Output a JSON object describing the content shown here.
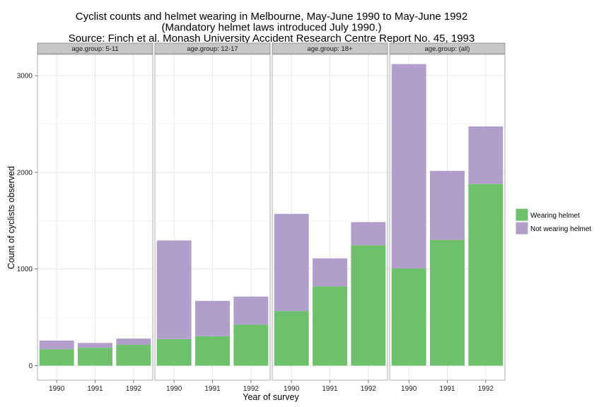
{
  "chart_data": {
    "type": "bar",
    "stacked": true,
    "faceted": true,
    "title": [
      "Cyclist counts and helmet wearing in Melbourne, May-June 1990 to May-June 1992",
      "(Mandatory helmet laws introduced July 1990.)",
      "Source: Finch et al. Monash University Accident Research Centre Report No. 45, 1993"
    ],
    "xlabel": "Year of survey",
    "ylabel": "Count of cyclists observed",
    "ylim": [
      -150,
      3220
    ],
    "yticks": [
      0,
      1000,
      2000,
      3000
    ],
    "categories": [
      "1990",
      "1991",
      "1992"
    ],
    "grid": true,
    "legend": {
      "placement": "right",
      "entries": [
        {
          "label": "Wearing helmet",
          "color": "#6cc16a"
        },
        {
          "label": "Not wearing helmet",
          "color": "#b19ecb"
        }
      ]
    },
    "facets": [
      {
        "label": "age.group: 5-11",
        "series": [
          {
            "name": "Wearing helmet",
            "values": [
              170,
              185,
              215
            ]
          },
          {
            "name": "Not wearing helmet",
            "values": [
              90,
              50,
              65
            ]
          }
        ]
      },
      {
        "label": "age.group: 12-17",
        "series": [
          {
            "name": "Wearing helmet",
            "values": [
              275,
              305,
              425
            ]
          },
          {
            "name": "Not wearing helmet",
            "values": [
              1020,
              365,
              290
            ]
          }
        ]
      },
      {
        "label": "age.group: 18+",
        "series": [
          {
            "name": "Wearing helmet",
            "values": [
              565,
              820,
              1245
            ]
          },
          {
            "name": "Not wearing helmet",
            "values": [
              1005,
              290,
              240
            ]
          }
        ]
      },
      {
        "label": "age.group: (all)",
        "series": [
          {
            "name": "Wearing helmet",
            "values": [
              1005,
              1300,
              1880
            ]
          },
          {
            "name": "Not wearing helmet",
            "values": [
              2115,
              715,
              595
            ]
          }
        ]
      }
    ]
  }
}
